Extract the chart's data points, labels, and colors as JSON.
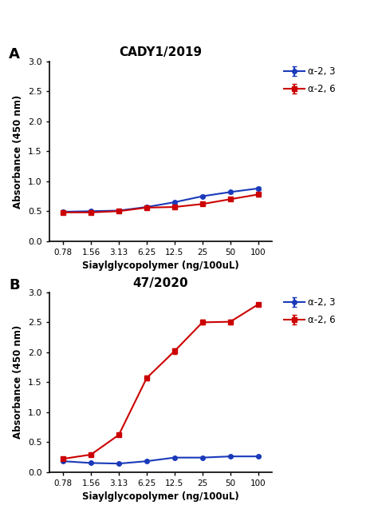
{
  "x_labels": [
    "0.78",
    "1.56",
    "3.13",
    "6.25",
    "12.5",
    "25",
    "50",
    "100"
  ],
  "x_positions": [
    0,
    1,
    2,
    3,
    4,
    5,
    6,
    7
  ],
  "panel_A": {
    "title": "CADY1/2019",
    "blue_y": [
      0.49,
      0.5,
      0.51,
      0.57,
      0.65,
      0.75,
      0.82,
      0.88
    ],
    "red_y": [
      0.48,
      0.48,
      0.5,
      0.56,
      0.57,
      0.62,
      0.7,
      0.78
    ],
    "blue_err": [
      0.02,
      0.02,
      0.02,
      0.02,
      0.02,
      0.02,
      0.02,
      0.03
    ],
    "red_err": [
      0.02,
      0.03,
      0.02,
      0.02,
      0.02,
      0.02,
      0.02,
      0.03
    ],
    "ylim": [
      0.0,
      3.0
    ],
    "yticks": [
      0.0,
      0.5,
      1.0,
      1.5,
      2.0,
      2.5,
      3.0
    ]
  },
  "panel_B": {
    "title": "47/2020",
    "blue_y": [
      0.18,
      0.15,
      0.14,
      0.18,
      0.24,
      0.24,
      0.26,
      0.26
    ],
    "red_y": [
      0.22,
      0.29,
      0.62,
      1.57,
      2.02,
      2.5,
      2.51,
      2.8
    ],
    "blue_err": [
      0.01,
      0.01,
      0.01,
      0.01,
      0.01,
      0.01,
      0.01,
      0.01
    ],
    "red_err": [
      0.01,
      0.02,
      0.03,
      0.04,
      0.05,
      0.04,
      0.04,
      0.03
    ],
    "ylim": [
      0.0,
      3.0
    ],
    "yticks": [
      0.0,
      0.5,
      1.0,
      1.5,
      2.0,
      2.5,
      3.0
    ]
  },
  "blue_color": "#1a3aba",
  "red_color": "#cc0000",
  "legend_blue": "α-2, 3",
  "legend_red": "α-2, 6",
  "xlabel": "Siaylglycopolymer (ng/100uL)",
  "ylabel": "Absorbance (450 nm)",
  "label_A": "A",
  "label_B": "B"
}
